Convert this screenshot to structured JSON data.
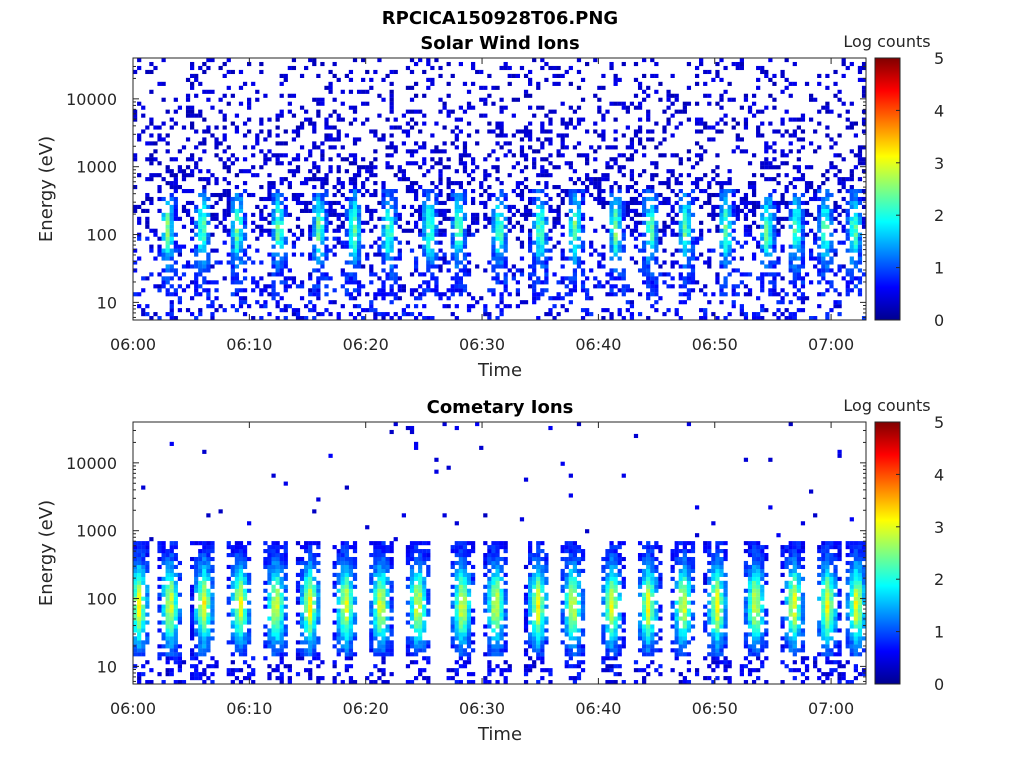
{
  "figure": {
    "title": "RPCICA150928T06.PNG"
  },
  "chart_data": [
    {
      "type": "heatmap",
      "title": "Solar Wind Ions",
      "xlabel": "Time",
      "ylabel": "Energy (eV)",
      "x_range": [
        "06:00",
        "07:03"
      ],
      "x_ticks": [
        "06:00",
        "06:10",
        "06:20",
        "06:30",
        "06:40",
        "06:50",
        "07:00"
      ],
      "y_scale": "log",
      "y_range": [
        5.5,
        40000
      ],
      "y_ticks": [
        10,
        100,
        1000,
        10000
      ],
      "y_tick_labels": [
        "10",
        "100",
        "1000",
        "10000"
      ],
      "colorbar": {
        "label": "Log counts",
        "range": [
          0,
          5
        ],
        "ticks": [
          "0",
          "1",
          "2",
          "3",
          "4",
          "5"
        ],
        "colormap": "jet"
      },
      "burst_centers_min": [
        3,
        6,
        9,
        12.5,
        16,
        19,
        22,
        25.5,
        28,
        31.5,
        35,
        38,
        41.5,
        44.5,
        47.5,
        51,
        54.5,
        57,
        59.5,
        62
      ],
      "background": {
        "energy_range_eV": [
          100,
          40000
        ],
        "log_counts_level": 0.4
      },
      "burst_peak_log_counts": 1.8,
      "burst_peak_energy_eV": 120
    },
    {
      "type": "heatmap",
      "title": "Cometary Ions",
      "xlabel": "Time",
      "ylabel": "Energy (eV)",
      "x_range": [
        "06:00",
        "07:03"
      ],
      "x_ticks": [
        "06:00",
        "06:10",
        "06:20",
        "06:30",
        "06:40",
        "06:50",
        "07:00"
      ],
      "y_scale": "log",
      "y_range": [
        5.5,
        40000
      ],
      "y_ticks": [
        10,
        100,
        1000,
        10000
      ],
      "y_tick_labels": [
        "10",
        "100",
        "1000",
        "10000"
      ],
      "colorbar": {
        "label": "Log counts",
        "range": [
          0,
          5
        ],
        "ticks": [
          "0",
          "1",
          "2",
          "3",
          "4",
          "5"
        ],
        "colormap": "jet"
      },
      "burst_centers_min": [
        0.5,
        3.2,
        6.1,
        9.2,
        12.3,
        15.2,
        18.3,
        21.3,
        24.5,
        28.3,
        31.2,
        34.8,
        37.8,
        41.2,
        44.3,
        47.3,
        50.2,
        53.5,
        56.8,
        59.7,
        62.2
      ],
      "burst_energy_range_eV": [
        15,
        700
      ],
      "burst_peak_log_counts": 2.6,
      "burst_peak_energy_eV": 80
    }
  ]
}
